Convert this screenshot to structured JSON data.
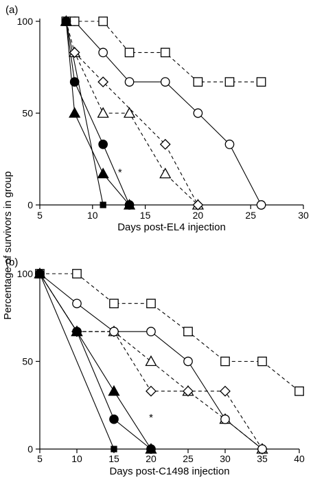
{
  "ylabel": "Percentage of survivors in group",
  "chart_data": [
    {
      "type": "line",
      "panel_label": "(a)",
      "xlabel": "Days post-EL4 injection",
      "ylabel": "Percentage of survivors in group",
      "xlim": [
        5,
        30
      ],
      "ylim": [
        0,
        100
      ],
      "xticks": [
        5,
        10,
        15,
        20,
        25,
        30
      ],
      "yticks": [
        0,
        50,
        100
      ],
      "grid": false,
      "annotations": [
        {
          "text": "*",
          "x": 12.6,
          "y": 16
        }
      ],
      "series": [
        {
          "marker": "filled-square",
          "line": "solid",
          "x": [
            7.5,
            11
          ],
          "y": [
            100,
            0
          ]
        },
        {
          "marker": "filled-triangle",
          "line": "solid",
          "x": [
            7.5,
            8.3,
            11,
            13.5
          ],
          "y": [
            100,
            50,
            17,
            0
          ]
        },
        {
          "marker": "filled-circle",
          "line": "solid",
          "x": [
            7.5,
            8.3,
            11,
            13.5
          ],
          "y": [
            100,
            67,
            33,
            0
          ]
        },
        {
          "marker": "open-triangle",
          "line": "dashed",
          "x": [
            7.5,
            8.3,
            11,
            13.5,
            16.9,
            20
          ],
          "y": [
            100,
            83,
            50,
            50,
            17,
            0
          ]
        },
        {
          "marker": "open-diamond",
          "line": "dashed",
          "x": [
            8.3,
            11,
            16.9,
            20
          ],
          "y": [
            83,
            67,
            33,
            0
          ]
        },
        {
          "marker": "open-circle",
          "line": "solid",
          "x": [
            8.3,
            11,
            13.5,
            16.9,
            20,
            23,
            26
          ],
          "y": [
            100,
            83,
            67,
            67,
            50,
            33,
            0
          ]
        },
        {
          "marker": "open-square",
          "line": "dashed",
          "x": [
            7.5,
            8.3,
            11,
            13.5,
            16.9,
            20,
            23,
            26
          ],
          "y": [
            100,
            100,
            100,
            83,
            83,
            67,
            67,
            67
          ]
        }
      ]
    },
    {
      "type": "line",
      "panel_label": "(b)",
      "xlabel": "Days post-C1498 injection",
      "ylabel": "Percentage of survivors in group",
      "xlim": [
        5,
        40
      ],
      "ylim": [
        0,
        100
      ],
      "xticks": [
        5,
        10,
        15,
        20,
        25,
        30,
        35,
        40
      ],
      "yticks": [
        0,
        50,
        100
      ],
      "grid": false,
      "annotations": [
        {
          "text": "*",
          "x": 20,
          "y": 16
        }
      ],
      "series": [
        {
          "marker": "filled-square",
          "line": "solid",
          "x": [
            5,
            15
          ],
          "y": [
            100,
            0
          ]
        },
        {
          "marker": "filled-triangle",
          "line": "solid",
          "x": [
            5,
            10,
            15,
            20
          ],
          "y": [
            100,
            67,
            33,
            0
          ]
        },
        {
          "marker": "filled-circle",
          "line": "solid",
          "x": [
            5,
            10,
            15,
            20
          ],
          "y": [
            100,
            67,
            17,
            0
          ]
        },
        {
          "marker": "open-triangle",
          "line": "dashed",
          "x": [
            5,
            10,
            15,
            20,
            25,
            30,
            35
          ],
          "y": [
            100,
            67,
            67,
            50,
            33,
            17,
            0
          ]
        },
        {
          "marker": "open-diamond",
          "line": "dashed",
          "x": [
            10,
            15,
            20,
            25,
            30,
            35
          ],
          "y": [
            67,
            67,
            33,
            33,
            33,
            0
          ]
        },
        {
          "marker": "open-circle",
          "line": "solid",
          "x": [
            5,
            10,
            15,
            20,
            25,
            30,
            35
          ],
          "y": [
            100,
            83,
            67,
            67,
            50,
            17,
            0
          ]
        },
        {
          "marker": "open-square",
          "line": "dashed",
          "x": [
            5,
            10,
            15,
            20,
            25,
            30,
            35,
            40
          ],
          "y": [
            100,
            100,
            83,
            83,
            67,
            50,
            50,
            33
          ]
        }
      ]
    }
  ]
}
